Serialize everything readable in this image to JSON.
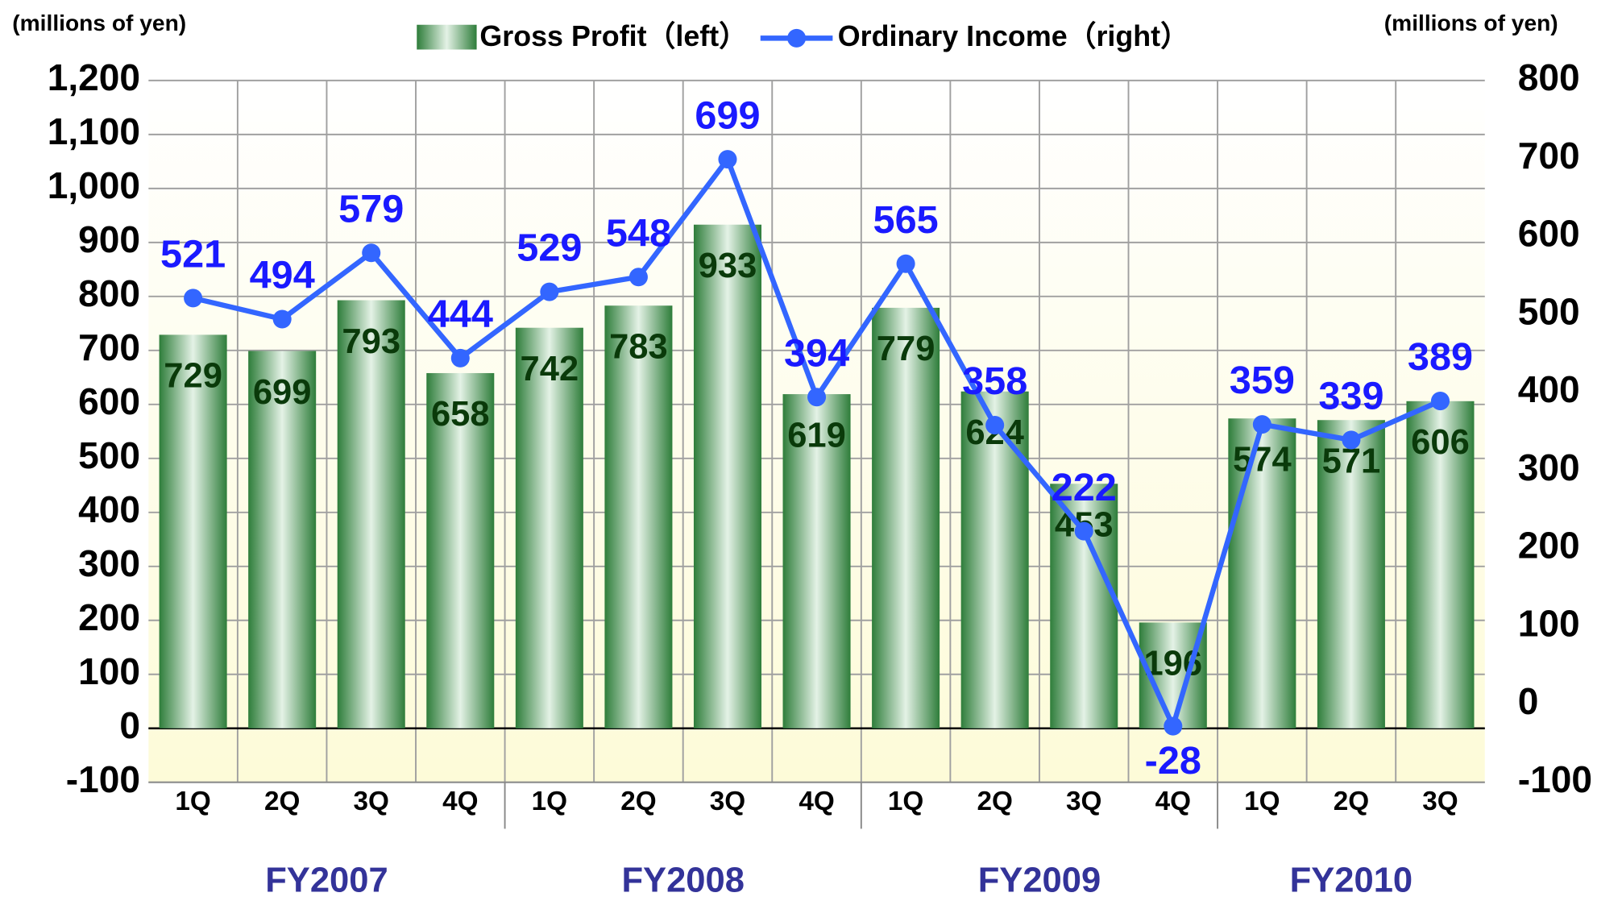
{
  "chart_data": {
    "type": "bar_line",
    "y_label": "(millions of yen)",
    "y2_label": "(millions of yen)",
    "groups": [
      {
        "name": "FY2007",
        "categories": [
          "1Q",
          "2Q",
          "3Q",
          "4Q"
        ]
      },
      {
        "name": "FY2008",
        "categories": [
          "1Q",
          "2Q",
          "3Q",
          "4Q"
        ]
      },
      {
        "name": "FY2009",
        "categories": [
          "1Q",
          "2Q",
          "3Q",
          "4Q"
        ]
      },
      {
        "name": "FY2010",
        "categories": [
          "1Q",
          "2Q",
          "3Q"
        ]
      }
    ],
    "series": [
      {
        "name": "Gross Profit（left）",
        "type": "bar",
        "color": "#2e8b3e",
        "values": [
          729,
          699,
          793,
          658,
          742,
          783,
          933,
          619,
          779,
          624,
          453,
          196,
          574,
          571,
          606
        ]
      },
      {
        "name": "Ordinary Income（right）",
        "type": "line",
        "axis": "y2",
        "color": "#3366ff",
        "values": [
          521,
          494,
          579,
          444,
          529,
          548,
          699,
          394,
          565,
          358,
          222,
          -28,
          359,
          339,
          389
        ]
      }
    ],
    "ylim": [
      -100,
      1200
    ],
    "yticks": [
      -100,
      0,
      100,
      200,
      300,
      400,
      500,
      600,
      700,
      800,
      900,
      {
        "value": 1000,
        "label": "1,000"
      },
      {
        "value": 1100,
        "label": "1,100"
      },
      {
        "value": 1200,
        "label": "1,200"
      }
    ],
    "y2lim": [
      -100,
      800
    ],
    "y2ticks": [
      -100,
      0,
      100,
      200,
      300,
      400,
      500,
      600,
      700,
      800
    ],
    "grid": true
  }
}
